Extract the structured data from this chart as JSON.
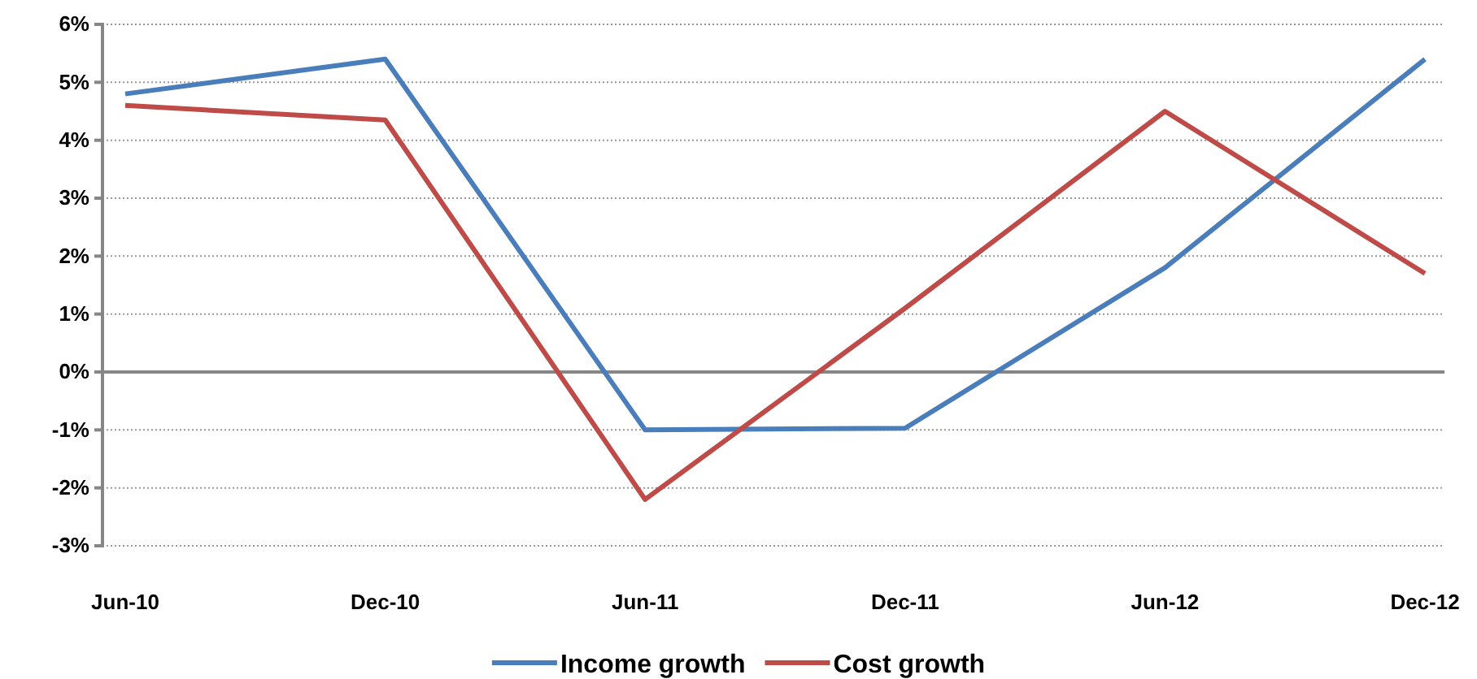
{
  "chart_data": {
    "type": "line",
    "categories": [
      "Jun-10",
      "Dec-10",
      "Jun-11",
      "Dec-11",
      "Jun-12",
      "Dec-12"
    ],
    "series": [
      {
        "name": "Income growth",
        "color": "#4a7ebb",
        "values": [
          4.8,
          5.4,
          -1.0,
          -0.97,
          1.8,
          5.4
        ]
      },
      {
        "name": "Cost growth",
        "color": "#be4b48",
        "values": [
          4.6,
          4.35,
          -2.2,
          1.1,
          4.5,
          1.7
        ]
      }
    ],
    "ylim": [
      -3,
      6
    ],
    "yticks": [
      {
        "value": -3,
        "label": "-3%"
      },
      {
        "value": -2,
        "label": "-2%"
      },
      {
        "value": -1,
        "label": "-1%"
      },
      {
        "value": 0,
        "label": "0%"
      },
      {
        "value": 1,
        "label": "1%"
      },
      {
        "value": 2,
        "label": "2%"
      },
      {
        "value": 3,
        "label": "3%"
      },
      {
        "value": 4,
        "label": "4%"
      },
      {
        "value": 5,
        "label": "5%"
      },
      {
        "value": 6,
        "label": "6%"
      }
    ],
    "grid": "y",
    "legend": "bottom",
    "marker": "none",
    "line_style": "solid"
  }
}
